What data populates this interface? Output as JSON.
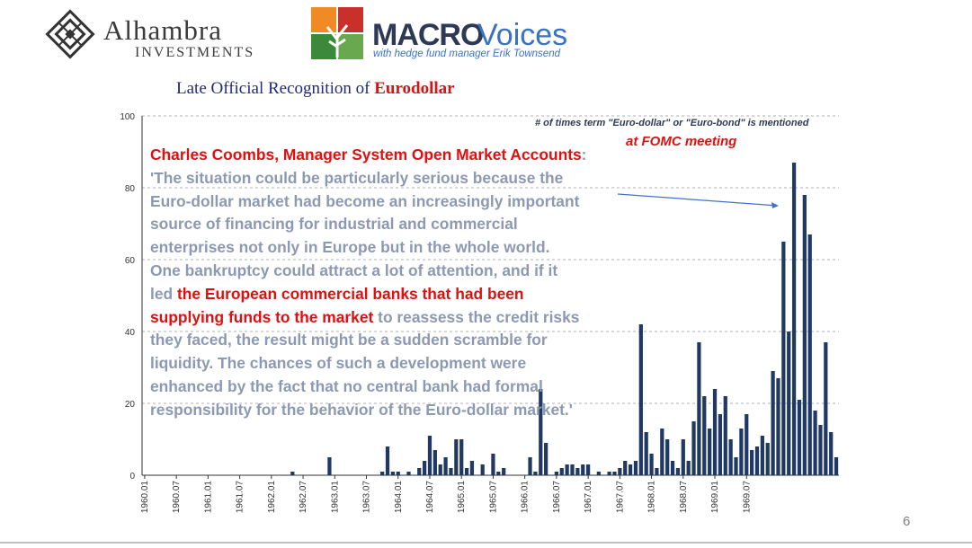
{
  "header": {
    "alhambra": {
      "name": "Alhambra",
      "sub": "INVESTMENTS"
    },
    "macrovoices": {
      "macro": "MACRO",
      "voices": "Voices",
      "tagline": "with hedge fund manager Erik Townsend"
    }
  },
  "slide_title": {
    "prefix": "Late Official Recognition of ",
    "highlight": "Eurodollar"
  },
  "annotation": {
    "line1": "# of times term \"Euro-dollar\" or \"Euro-bond\" is mentioned",
    "line2": "at FOMC meeting"
  },
  "quote": {
    "heading": "Charles Coombs, Manager System Open Market Accounts",
    "colon": ":",
    "l1": "'The situation could be particularly serious because the",
    "l2": "Euro-dollar market had become an increasingly important",
    "l3": "source of financing for industrial and commercial",
    "l4": "enterprises not only in Europe but in the whole world.",
    "l5": "One bankruptcy could attract a lot of attention, and if it",
    "l6_a": "led ",
    "l6_b": "the European commercial banks that had been",
    "l7_a": "supplying funds to the market",
    "l7_b": " to reassess the credit risks",
    "l8": "they faced, the result might be a sudden scramble for",
    "l9": "liquidity. The chances of such a development were",
    "l10": "enhanced by the fact that no central bank had formal",
    "l11": "responsibility for the behavior of the Euro-dollar market.'"
  },
  "page_number": "6",
  "colors": {
    "bar": "#1f3864",
    "title_blue": "#1f2a80",
    "red": "#e01010",
    "quote_gray": "#8c99b3",
    "grid": "#b0b0b0"
  },
  "chart_data": {
    "type": "bar",
    "title": "",
    "xlabel": "",
    "ylabel": "",
    "ylim": [
      0,
      100
    ],
    "y_ticks": [
      "0",
      "20",
      "40",
      "60",
      "80",
      "100"
    ],
    "grid": "horizontal dashed",
    "x_tick_labels": [
      "1960.01",
      "1960.07",
      "1961.01",
      "1961.07",
      "1962.01",
      "1962.07",
      "1963.01",
      "1963.07",
      "1964.01",
      "1964.07",
      "1965.01",
      "1965.07",
      "1966.01",
      "1966.07",
      "1967.01",
      "1967.07",
      "1968.01",
      "1968.07",
      "1969.01",
      "1969.07"
    ],
    "series": [
      {
        "values": [
          0,
          0,
          0,
          0,
          0,
          0,
          0,
          0,
          0,
          0,
          0,
          0,
          0,
          0,
          0,
          0,
          0,
          0,
          0,
          0,
          0,
          0,
          0,
          0,
          0,
          0,
          0,
          0,
          1,
          0,
          0,
          0,
          0,
          0,
          0,
          5,
          0,
          0,
          0,
          0,
          0,
          0,
          0,
          0,
          0,
          1,
          8,
          1,
          1,
          0,
          1,
          0,
          2,
          4,
          11,
          7,
          3,
          5,
          2,
          10,
          10,
          2,
          4,
          0,
          3,
          0,
          6,
          1,
          2,
          0,
          0,
          0,
          0,
          5,
          1,
          24,
          9,
          0,
          1,
          2,
          3,
          3,
          2,
          3,
          3,
          0,
          1,
          0,
          1,
          1,
          2,
          4,
          3,
          4,
          42,
          12,
          6,
          2,
          13,
          10,
          4,
          2,
          10,
          4,
          15,
          37,
          22,
          13,
          24,
          17,
          22,
          10,
          5,
          13,
          17,
          7,
          8,
          11,
          9,
          29,
          27,
          65,
          40,
          87,
          21,
          78,
          67,
          18,
          14,
          37,
          12,
          5
        ]
      }
    ]
  }
}
